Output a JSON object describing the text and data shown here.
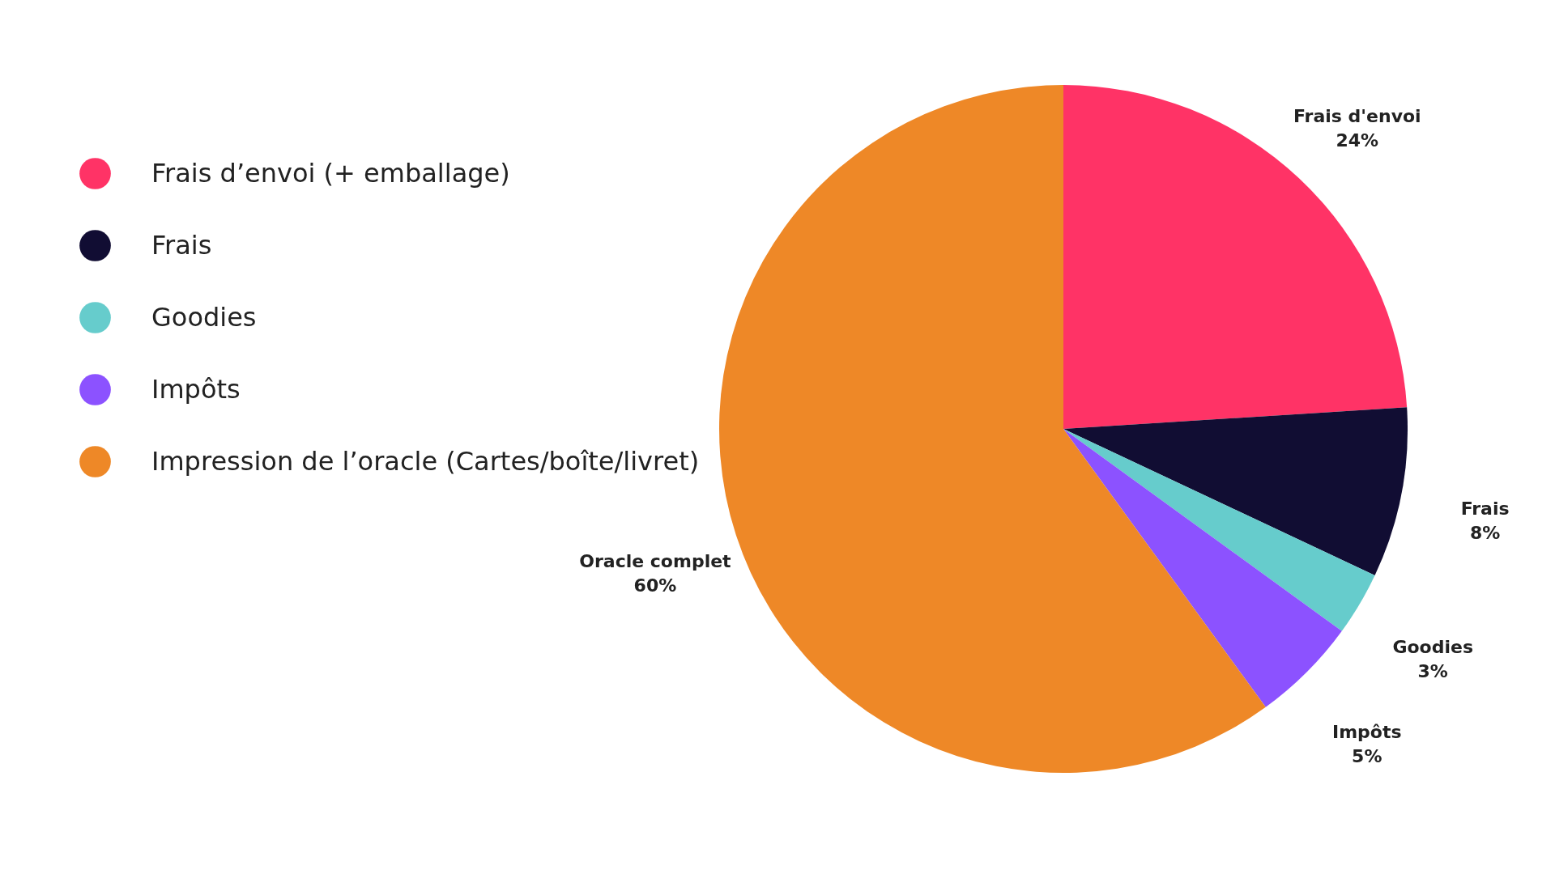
{
  "chart_data": {
    "type": "pie",
    "categories": [
      "Frais d’envoi (+ emballage)",
      "Frais",
      "Goodies",
      "Impôts",
      "Impression de l’oracle (Cartes/boîte/livret)"
    ],
    "values": [
      24,
      8,
      3,
      5,
      60
    ],
    "colors": [
      "#ff3366",
      "#110d33",
      "#66cccc",
      "#8c52ff",
      "#ee8827"
    ],
    "value_labels": [
      "Frais d'envoi\n24%",
      "Frais\n8%",
      "Goodies\n3%",
      "Impôts\n5%",
      "Oracle complet\n60%"
    ],
    "legend": "left"
  }
}
